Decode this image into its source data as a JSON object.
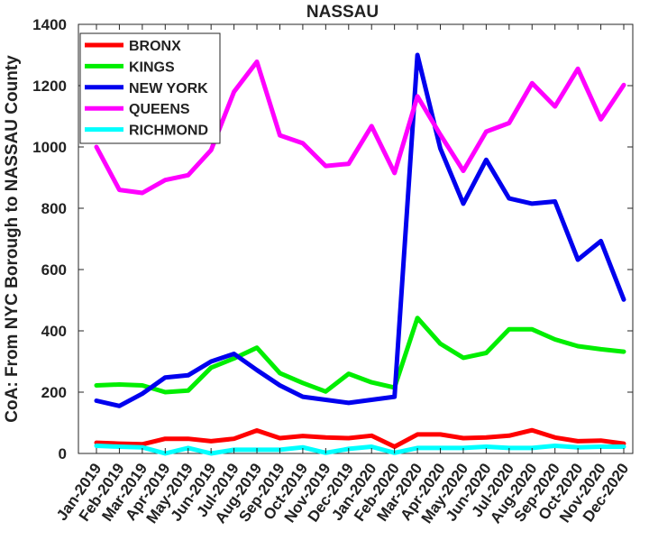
{
  "chart_data": {
    "type": "line",
    "title": "NASSAU",
    "xlabel": "",
    "ylabel": "CoA: From NYC Borough to NASSAU County",
    "categories": [
      "Jan-2019",
      "Feb-2019",
      "Mar-2019",
      "Apr-2019",
      "May-2019",
      "Jun-2019",
      "Jul-2019",
      "Aug-2019",
      "Sep-2019",
      "Oct-2019",
      "Nov-2019",
      "Dec-2019",
      "Jan-2020",
      "Feb-2020",
      "Mar-2020",
      "Apr-2020",
      "May-2020",
      "Jun-2020",
      "Jul-2020",
      "Aug-2020",
      "Sep-2020",
      "Oct-2020",
      "Nov-2020",
      "Dec-2020"
    ],
    "ylim": [
      0,
      1400
    ],
    "yticks": [
      "0",
      "200",
      "400",
      "600",
      "800",
      "1000",
      "1200",
      "1400"
    ],
    "grid": false,
    "legend_position": "top-left",
    "series": [
      {
        "name": "BRONX",
        "color": "#ff0000",
        "values": [
          35,
          32,
          30,
          48,
          48,
          40,
          48,
          75,
          50,
          57,
          52,
          50,
          58,
          22,
          62,
          62,
          50,
          52,
          58,
          76,
          52,
          40,
          42,
          32
        ]
      },
      {
        "name": "KINGS",
        "color": "#00ee00",
        "values": [
          222,
          225,
          222,
          200,
          205,
          280,
          310,
          345,
          262,
          230,
          202,
          260,
          232,
          215,
          442,
          358,
          312,
          328,
          405,
          405,
          372,
          350,
          340,
          332
        ]
      },
      {
        "name": "NEW YORK",
        "color": "#0000ee",
        "values": [
          172,
          155,
          195,
          248,
          255,
          300,
          325,
          272,
          222,
          185,
          175,
          165,
          175,
          185,
          1300,
          995,
          815,
          958,
          832,
          815,
          822,
          632,
          693,
          502
        ]
      },
      {
        "name": "QUEENS",
        "color": "#ff00ff",
        "values": [
          1000,
          860,
          850,
          892,
          908,
          990,
          1180,
          1278,
          1038,
          1012,
          938,
          945,
          1068,
          915,
          1165,
          1040,
          922,
          1050,
          1078,
          1208,
          1132,
          1255,
          1090,
          1202
        ]
      },
      {
        "name": "RICHMOND",
        "color": "#00ffff",
        "values": [
          25,
          22,
          20,
          0,
          18,
          0,
          12,
          12,
          12,
          20,
          2,
          15,
          22,
          2,
          18,
          18,
          18,
          22,
          18,
          18,
          25,
          20,
          22,
          22
        ]
      }
    ]
  }
}
